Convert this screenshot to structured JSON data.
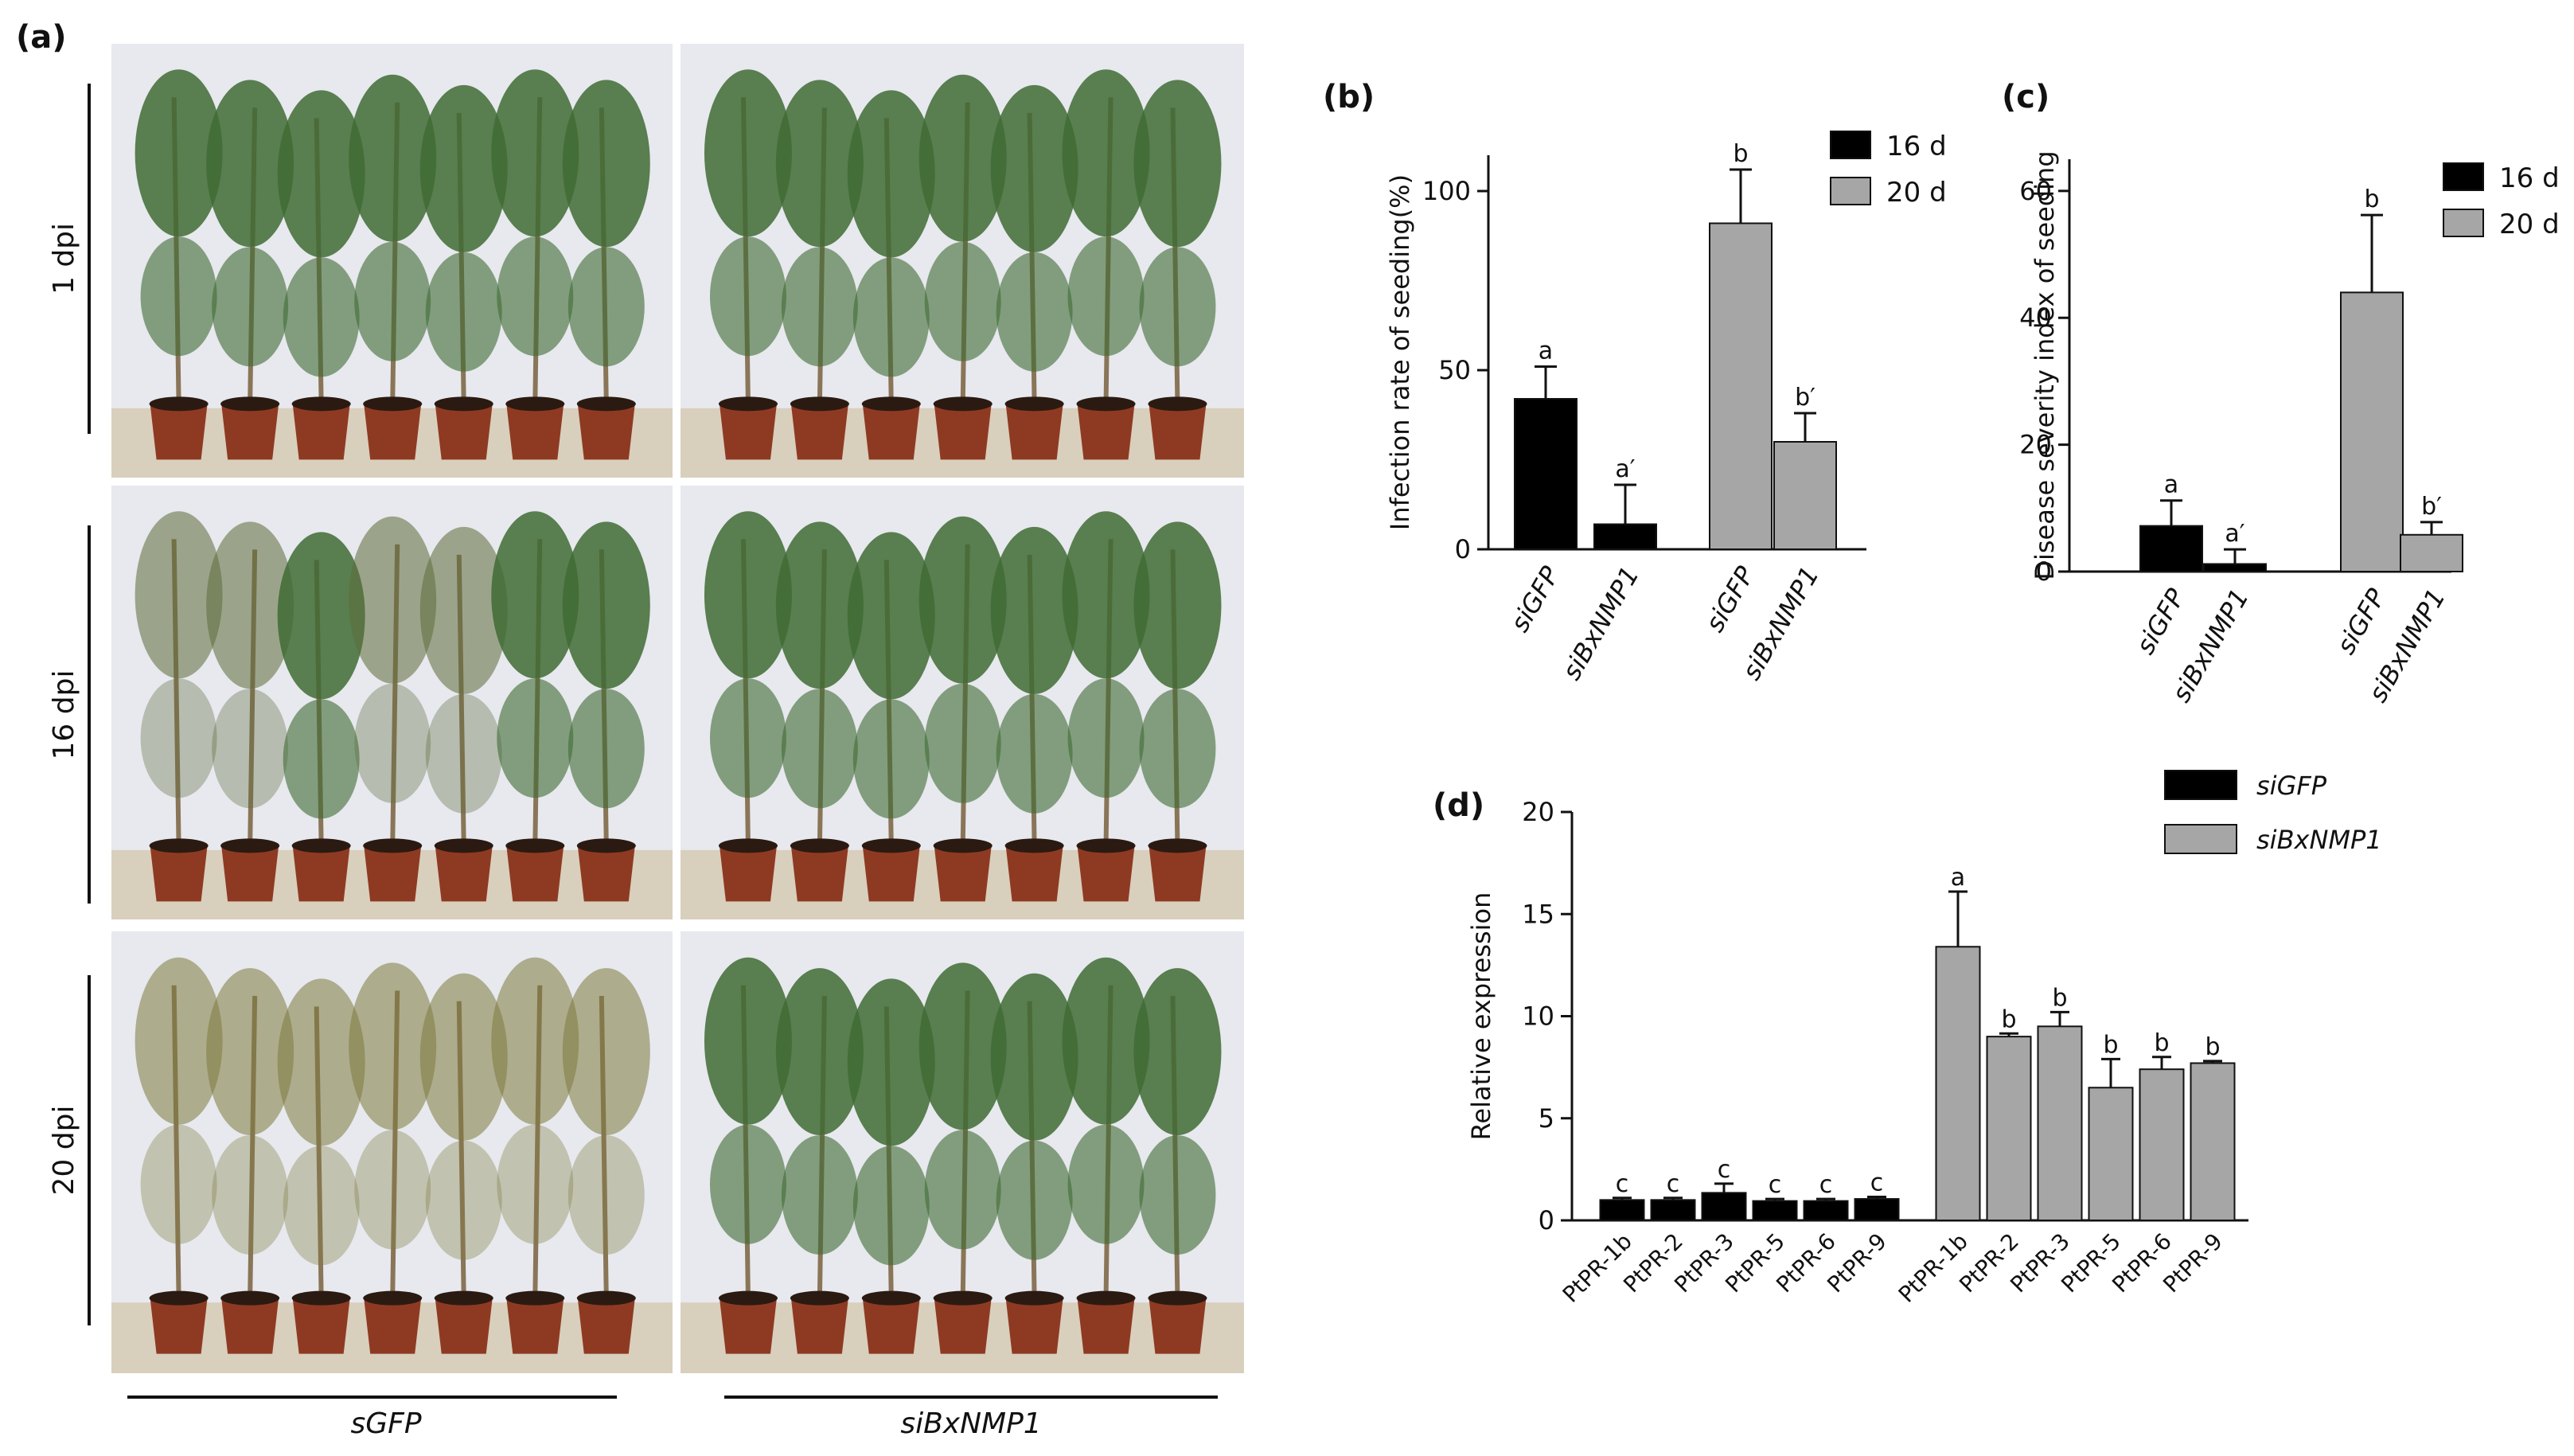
{
  "figure": {
    "panel_labels": {
      "a": "(a)",
      "b": "(b)",
      "c": "(c)",
      "d": "(d)"
    },
    "photo_panel": {
      "row_labels": [
        "1 dpi",
        "16 dpi",
        "20 dpi"
      ],
      "group_labels": [
        "sGFP",
        "siBxNMP1"
      ],
      "colors": {
        "background": "#e7e9ee",
        "floor": "#d9cfbd",
        "pot": "#8e3a22",
        "needle": "#3f6b34",
        "stem": "#8a7558"
      }
    }
  },
  "chart_data": [
    {
      "id": "b",
      "type": "bar",
      "title": "",
      "xlabel": "",
      "ylabel": "Infection rate of seeding(%)",
      "ylim": [
        0,
        110
      ],
      "yticks": [
        0,
        50,
        100
      ],
      "legend": {
        "placement": "top-right",
        "entries": [
          "16 d",
          "20 d"
        ]
      },
      "colors": {
        "16 d": "#000000",
        "20 d": "#a6a6a6"
      },
      "bars": [
        {
          "category": "siGFP",
          "series": "16 d",
          "value": 42,
          "error": 9,
          "label": "a"
        },
        {
          "category": "siBxNMP1",
          "series": "16 d",
          "value": 7,
          "error": 11,
          "label": "a′"
        },
        {
          "category": "siGFP",
          "series": "20 d",
          "value": 91,
          "error": 15,
          "label": "b"
        },
        {
          "category": "siBxNMP1",
          "series": "20 d",
          "value": 30,
          "error": 8,
          "label": "b′"
        }
      ]
    },
    {
      "id": "c",
      "type": "bar",
      "title": "",
      "xlabel": "",
      "ylabel": "Disease severity index of seeding",
      "ylim": [
        0,
        65
      ],
      "yticks": [
        0,
        20,
        40,
        60
      ],
      "legend": {
        "placement": "top-right",
        "entries": [
          "16 d",
          "20 d"
        ]
      },
      "colors": {
        "16 d": "#000000",
        "20 d": "#a6a6a6"
      },
      "bars": [
        {
          "category": "siGFP",
          "series": "16 d",
          "value": 7.2,
          "error": 4,
          "label": "a"
        },
        {
          "category": "siBxNMP1",
          "series": "16 d",
          "value": 1.2,
          "error": 2.3,
          "label": "a′"
        },
        {
          "category": "siGFP",
          "series": "20 d",
          "value": 44,
          "error": 12.2,
          "label": "b"
        },
        {
          "category": "siBxNMP1",
          "series": "20 d",
          "value": 5.8,
          "error": 2,
          "label": "b′"
        }
      ]
    },
    {
      "id": "d",
      "type": "bar",
      "title": "",
      "xlabel": "",
      "ylabel": "Relative expression",
      "ylim": [
        0,
        20
      ],
      "yticks": [
        0,
        5,
        10,
        15,
        20
      ],
      "legend": {
        "placement": "top-right",
        "entries": [
          "siGFP",
          "siBxNMP1"
        ]
      },
      "colors": {
        "siGFP": "#000000",
        "siBxNMP1": "#a6a6a6"
      },
      "categories": [
        "PtPR-1b",
        "PtPR-2",
        "PtPR-3",
        "PtPR-5",
        "PtPR-6",
        "PtPR-9"
      ],
      "series": [
        {
          "name": "siGFP",
          "values": [
            1.0,
            1.0,
            1.35,
            0.95,
            0.95,
            1.05
          ],
          "errors": [
            0.1,
            0.1,
            0.45,
            0.1,
            0.1,
            0.1
          ],
          "labels": [
            "c",
            "c",
            "c",
            "c",
            "c",
            "c"
          ]
        },
        {
          "name": "siBxNMP1",
          "values": [
            13.4,
            9.0,
            9.5,
            6.5,
            7.4,
            7.7
          ],
          "errors": [
            2.7,
            0.15,
            0.7,
            1.4,
            0.6,
            0.1
          ],
          "labels": [
            "a",
            "b",
            "b",
            "b",
            "b",
            "b"
          ]
        }
      ]
    }
  ]
}
